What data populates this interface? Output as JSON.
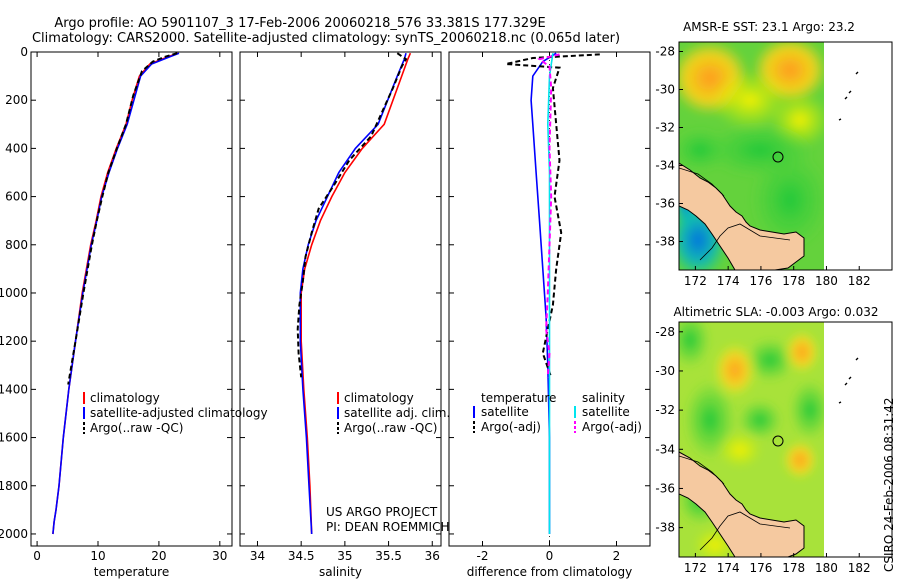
{
  "title": {
    "line1": "Argo profile: AO 5901107_3 17-Feb-2006 20060218_576 33.381S 177.329E",
    "line2": "Climatology: CARS2000. Satellite-adjusted climatology: synTS_20060218.nc (0.065d later)"
  },
  "side_stamp": "CSIRO 24-Feb-2006 08:31:42",
  "project_credit": {
    "line1": "US ARGO PROJECT",
    "line2": "PI: DEAN ROEMMICH"
  },
  "colors": {
    "climatology": "#ff0000",
    "satellite": "#0000ff",
    "argo": "#000000",
    "satellite_diff": "#00e5ee",
    "argo_salinity_diff": "#ff00ff",
    "land": "#f5c9a0"
  },
  "chart_data": [
    {
      "id": "temperature",
      "type": "line",
      "xlabel": "temperature",
      "ylabel": "",
      "xlim": [
        -1,
        32
      ],
      "ylim": [
        2050,
        0
      ],
      "xticks": [
        "0",
        "10",
        "20",
        "30"
      ],
      "xtick_values": [
        0,
        10,
        20,
        30
      ],
      "yticks": [
        "0",
        "200",
        "400",
        "600",
        "800",
        "1000",
        "1200",
        "1400",
        "1600",
        "1800",
        "2000"
      ],
      "ytick_values": [
        0,
        200,
        400,
        600,
        800,
        1000,
        1200,
        1400,
        1600,
        1800,
        2000
      ],
      "legend": [
        "climatology",
        "satellite-adjusted climatology",
        "Argo(..raw -QC)"
      ],
      "series": [
        {
          "name": "climatology",
          "style": "solid",
          "color": "#ff0000",
          "x": [
            23.1,
            21.5,
            18.5,
            16.8,
            15.6,
            14.6,
            13.0,
            11.6,
            10.5,
            9.7,
            8.8,
            7.4,
            6.3,
            5.2,
            4.3,
            3.6,
            3.1,
            2.8,
            2.6
          ],
          "y": [
            5,
            20,
            50,
            100,
            200,
            300,
            400,
            500,
            600,
            700,
            800,
            1000,
            1200,
            1400,
            1600,
            1800,
            1900,
            1950,
            2000
          ]
        },
        {
          "name": "satellite-adjusted climatology",
          "style": "solid",
          "color": "#0000ff",
          "x": [
            23.3,
            21.8,
            18.8,
            17.0,
            15.9,
            14.8,
            13.2,
            11.8,
            10.6,
            9.8,
            8.9,
            7.5,
            6.3,
            5.2,
            4.3,
            3.6,
            3.1,
            2.8,
            2.6
          ],
          "y": [
            5,
            20,
            50,
            100,
            200,
            300,
            400,
            500,
            600,
            700,
            800,
            1000,
            1200,
            1400,
            1600,
            1800,
            1900,
            1950,
            2000
          ]
        },
        {
          "name": "Argo(..raw -QC)",
          "style": "dashed",
          "color": "#000000",
          "x": [
            23.0,
            21.0,
            19.0,
            17.2,
            15.8,
            14.6,
            13.1,
            11.7,
            10.7,
            9.8,
            9.0,
            7.6,
            6.3,
            5.1
          ],
          "y": [
            5,
            20,
            40,
            80,
            180,
            300,
            400,
            500,
            600,
            700,
            800,
            1000,
            1200,
            1380
          ]
        }
      ]
    },
    {
      "id": "salinity",
      "type": "line",
      "xlabel": "salinity",
      "ylabel": "",
      "xlim": [
        33.8,
        36.1
      ],
      "ylim": [
        2050,
        0
      ],
      "xticks": [
        "34",
        "34.5",
        "35",
        "35.5",
        "36"
      ],
      "xtick_values": [
        34,
        34.5,
        35,
        35.5,
        36
      ],
      "legend": [
        "climatology",
        "satellite adj. clim.",
        "Argo(..raw -QC)"
      ],
      "series": [
        {
          "name": "climatology",
          "style": "solid",
          "color": "#ff0000",
          "x": [
            35.75,
            35.72,
            35.65,
            35.45,
            35.2,
            35.0,
            34.85,
            34.72,
            34.62,
            34.54,
            34.5,
            34.5,
            34.53,
            34.57,
            34.6,
            34.62
          ],
          "y": [
            5,
            30,
            100,
            300,
            400,
            500,
            600,
            700,
            800,
            900,
            1000,
            1200,
            1400,
            1600,
            1800,
            2000
          ]
        },
        {
          "name": "satellite adj. clim.",
          "style": "solid",
          "color": "#0000ff",
          "x": [
            35.7,
            35.68,
            35.6,
            35.38,
            35.12,
            34.93,
            34.8,
            34.67,
            34.58,
            34.52,
            34.49,
            34.49,
            34.52,
            34.56,
            34.59,
            34.62
          ],
          "y": [
            5,
            30,
            100,
            300,
            400,
            500,
            600,
            700,
            800,
            900,
            1000,
            1200,
            1400,
            1600,
            1800,
            2000
          ]
        },
        {
          "name": "Argo(..raw -QC)",
          "style": "dashed",
          "color": "#000000",
          "x": [
            35.6,
            35.7,
            35.65,
            35.55,
            35.3,
            35.05,
            34.88,
            34.7,
            34.62,
            34.55,
            34.52,
            34.48,
            34.46,
            34.47,
            34.5
          ],
          "y": [
            5,
            30,
            60,
            150,
            350,
            450,
            550,
            650,
            750,
            850,
            950,
            1050,
            1150,
            1250,
            1350
          ]
        }
      ]
    },
    {
      "id": "difference",
      "type": "line",
      "xlabel": "difference from climatology",
      "ylabel": "",
      "xlim": [
        -3,
        3
      ],
      "ylim": [
        2050,
        0
      ],
      "xticks": [
        "-2",
        "0",
        "2"
      ],
      "xtick_values": [
        -2,
        0,
        2
      ],
      "legend_titles": [
        "temperature",
        "salinity"
      ],
      "legend": [
        "satellite",
        "Argo(-adj)",
        "satellite",
        "Argo(-adj)"
      ],
      "series": [
        {
          "name": "temperature satellite",
          "style": "solid",
          "color": "#0000ff",
          "x": [
            0.2,
            -0.2,
            -0.5,
            -0.55,
            -0.5,
            -0.4,
            -0.3,
            -0.2,
            -0.1,
            -0.05,
            0,
            0
          ],
          "y": [
            5,
            40,
            100,
            200,
            300,
            500,
            700,
            900,
            1100,
            1300,
            1600,
            2000
          ]
        },
        {
          "name": "temperature Argo(-adj)",
          "style": "dashed",
          "color": "#000000",
          "x": [
            1.5,
            -0.5,
            -1.3,
            0.3,
            0.1,
            0.2,
            0.3,
            0.15,
            0.35,
            0.2,
            0.1,
            -0.05,
            -0.2,
            0.05
          ],
          "y": [
            10,
            25,
            50,
            65,
            150,
            300,
            450,
            600,
            750,
            900,
            1050,
            1150,
            1250,
            1350
          ]
        },
        {
          "name": "salinity satellite",
          "style": "solid",
          "color": "#00e5ee",
          "x": [
            0.1,
            0.0,
            -0.05,
            0.0,
            0.0,
            0.0,
            0.0,
            0.0,
            0.0,
            0.0,
            0.0
          ],
          "y": [
            5,
            100,
            300,
            500,
            700,
            900,
            1100,
            1300,
            1500,
            1800,
            2000
          ]
        },
        {
          "name": "salinity Argo(-adj)",
          "style": "dashed",
          "color": "#ff00ff",
          "x": [
            0.3,
            -0.3,
            0.0,
            0.05,
            0.0,
            0.05,
            0.0,
            -0.05,
            -0.1,
            0.0,
            -0.05
          ],
          "y": [
            10,
            30,
            60,
            150,
            400,
            600,
            800,
            1000,
            1150,
            1250,
            1350
          ]
        }
      ]
    },
    {
      "id": "sst_map",
      "type": "heatmap",
      "title": "AMSR-E SST: 23.1 Argo: 23.2",
      "xlim": [
        171,
        184
      ],
      "ylim": [
        -39.5,
        -27.5
      ],
      "xticks": [
        "172",
        "174",
        "176",
        "178",
        "180",
        "182"
      ],
      "xtick_values": [
        172,
        174,
        176,
        178,
        180,
        182
      ],
      "yticks": [
        "-28",
        "-30",
        "-32",
        "-34",
        "-36",
        "-38"
      ],
      "ytick_values": [
        -28,
        -30,
        -32,
        -34,
        -36,
        -38
      ],
      "argo_position": {
        "lon": 177.329,
        "lat": -33.381
      }
    },
    {
      "id": "sla_map",
      "type": "heatmap",
      "title": "Altimetric SLA: -0.003 Argo: 0.032",
      "xlim": [
        171,
        184
      ],
      "ylim": [
        -39.5,
        -27.5
      ],
      "xticks": [
        "172",
        "174",
        "176",
        "178",
        "180",
        "182"
      ],
      "xtick_values": [
        172,
        174,
        176,
        178,
        180,
        182
      ],
      "yticks": [
        "-28",
        "-30",
        "-32",
        "-34",
        "-36",
        "-38"
      ],
      "ytick_values": [
        -28,
        -30,
        -32,
        -34,
        -36,
        -38
      ],
      "argo_position": {
        "lon": 177.329,
        "lat": -33.381
      }
    }
  ]
}
